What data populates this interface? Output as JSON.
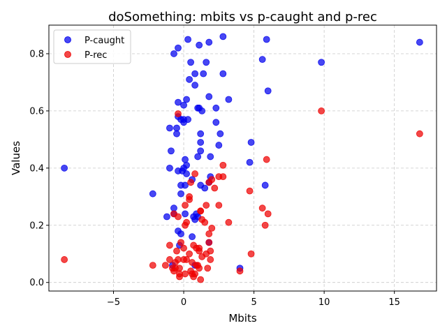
{
  "chart_data": {
    "type": "scatter",
    "title": "doSomething: mbits vs p-caught and p-rec",
    "xlabel": "Mbits",
    "ylabel": "Values",
    "xlim": [
      -9.6,
      18.0
    ],
    "ylim": [
      -0.03,
      0.9
    ],
    "xticks": [
      -5,
      0,
      5,
      10,
      15
    ],
    "yticks": [
      0.0,
      0.2,
      0.4,
      0.6,
      0.8
    ],
    "grid": true,
    "legend_position": "top-left",
    "series": [
      {
        "name": "P-caught",
        "color": "#0000ee",
        "points": [
          [
            -0.7,
            0.8
          ],
          [
            -0.4,
            0.82
          ],
          [
            0.3,
            0.85
          ],
          [
            1.1,
            0.83
          ],
          [
            1.8,
            0.84
          ],
          [
            2.8,
            0.86
          ],
          [
            5.9,
            0.85
          ],
          [
            16.8,
            0.84
          ],
          [
            0.5,
            0.77
          ],
          [
            1.6,
            0.77
          ],
          [
            5.6,
            0.78
          ],
          [
            9.8,
            0.77
          ],
          [
            0.8,
            0.73
          ],
          [
            1.4,
            0.73
          ],
          [
            2.8,
            0.73
          ],
          [
            0.4,
            0.71
          ],
          [
            0.8,
            0.69
          ],
          [
            6.0,
            0.67
          ],
          [
            1.8,
            0.65
          ],
          [
            3.2,
            0.64
          ],
          [
            0.2,
            0.64
          ],
          [
            -0.4,
            0.63
          ],
          [
            0.0,
            0.62
          ],
          [
            1.0,
            0.61
          ],
          [
            1.1,
            0.61
          ],
          [
            1.3,
            0.6
          ],
          [
            2.3,
            0.61
          ],
          [
            -0.4,
            0.58
          ],
          [
            0.0,
            0.57
          ],
          [
            0.3,
            0.57
          ],
          [
            -0.2,
            0.57
          ],
          [
            0.0,
            0.56
          ],
          [
            2.3,
            0.56
          ],
          [
            -1.0,
            0.54
          ],
          [
            -0.5,
            0.54
          ],
          [
            -0.5,
            0.52
          ],
          [
            1.2,
            0.52
          ],
          [
            2.6,
            0.52
          ],
          [
            1.2,
            0.49
          ],
          [
            4.8,
            0.49
          ],
          [
            2.5,
            0.48
          ],
          [
            -0.9,
            0.46
          ],
          [
            1.2,
            0.46
          ],
          [
            1.0,
            0.44
          ],
          [
            1.9,
            0.44
          ],
          [
            0.1,
            0.43
          ],
          [
            4.7,
            0.42
          ],
          [
            -8.5,
            0.4
          ],
          [
            -1.0,
            0.4
          ],
          [
            0.2,
            0.41
          ],
          [
            0.0,
            0.4
          ],
          [
            -0.4,
            0.39
          ],
          [
            -0.1,
            0.39
          ],
          [
            0.2,
            0.38
          ],
          [
            1.9,
            0.37
          ],
          [
            0.6,
            0.36
          ],
          [
            -0.2,
            0.34
          ],
          [
            0.1,
            0.34
          ],
          [
            1.2,
            0.34
          ],
          [
            1.5,
            0.33
          ],
          [
            1.8,
            0.35
          ],
          [
            5.8,
            0.34
          ],
          [
            -2.2,
            0.31
          ],
          [
            -0.2,
            0.31
          ],
          [
            -0.7,
            0.26
          ],
          [
            -0.7,
            0.24
          ],
          [
            0.1,
            0.24
          ],
          [
            0.9,
            0.24
          ],
          [
            0.7,
            0.23
          ],
          [
            1.0,
            0.23
          ],
          [
            0.8,
            0.22
          ],
          [
            -1.2,
            0.23
          ],
          [
            -0.4,
            0.18
          ],
          [
            -0.2,
            0.17
          ],
          [
            0.6,
            0.16
          ],
          [
            -0.3,
            0.13
          ],
          [
            1.8,
            0.14
          ],
          [
            -0.8,
            0.06
          ],
          [
            0.8,
            0.06
          ],
          [
            4.0,
            0.05
          ]
        ]
      },
      {
        "name": "P-rec",
        "color": "#ee0000",
        "points": [
          [
            -0.4,
            0.59
          ],
          [
            9.8,
            0.6
          ],
          [
            16.8,
            0.52
          ],
          [
            5.9,
            0.43
          ],
          [
            2.8,
            0.41
          ],
          [
            0.8,
            0.38
          ],
          [
            2.0,
            0.36
          ],
          [
            2.5,
            0.37
          ],
          [
            2.8,
            0.37
          ],
          [
            1.8,
            0.35
          ],
          [
            0.5,
            0.35
          ],
          [
            2.2,
            0.33
          ],
          [
            4.7,
            0.32
          ],
          [
            0.4,
            0.3
          ],
          [
            0.4,
            0.29
          ],
          [
            1.6,
            0.27
          ],
          [
            2.5,
            0.27
          ],
          [
            0.1,
            0.27
          ],
          [
            5.6,
            0.26
          ],
          [
            -0.7,
            0.24
          ],
          [
            6.0,
            0.24
          ],
          [
            -0.4,
            0.23
          ],
          [
            1.2,
            0.25
          ],
          [
            1.2,
            0.25
          ],
          [
            1.3,
            0.22
          ],
          [
            1.5,
            0.21
          ],
          [
            3.2,
            0.21
          ],
          [
            0.1,
            0.2
          ],
          [
            0.2,
            0.21
          ],
          [
            5.8,
            0.2
          ],
          [
            2.0,
            0.19
          ],
          [
            1.8,
            0.17
          ],
          [
            -0.2,
            0.14
          ],
          [
            -1.0,
            0.13
          ],
          [
            0.0,
            0.12
          ],
          [
            0.7,
            0.13
          ],
          [
            -0.5,
            0.11
          ],
          [
            0.4,
            0.1
          ],
          [
            1.1,
            0.11
          ],
          [
            1.1,
            0.12
          ],
          [
            1.9,
            0.11
          ],
          [
            1.6,
            0.1
          ],
          [
            1.3,
            0.09
          ],
          [
            4.8,
            0.1
          ],
          [
            -8.5,
            0.08
          ],
          [
            -1.0,
            0.08
          ],
          [
            -0.4,
            0.08
          ],
          [
            0.0,
            0.08
          ],
          [
            0.2,
            0.08
          ],
          [
            1.9,
            0.08
          ],
          [
            0.6,
            0.07
          ],
          [
            -0.6,
            0.07
          ],
          [
            -1.3,
            0.06
          ],
          [
            -2.2,
            0.06
          ],
          [
            0.9,
            0.06
          ],
          [
            1.0,
            0.06
          ],
          [
            -0.8,
            0.05
          ],
          [
            -0.6,
            0.05
          ],
          [
            -0.3,
            0.05
          ],
          [
            0.5,
            0.04
          ],
          [
            0.8,
            0.03
          ],
          [
            1.1,
            0.05
          ],
          [
            1.7,
            0.05
          ],
          [
            4.0,
            0.04
          ],
          [
            -0.7,
            0.04
          ],
          [
            -0.3,
            0.03
          ],
          [
            0.1,
            0.03
          ],
          [
            0.6,
            0.03
          ],
          [
            0.7,
            0.02
          ],
          [
            1.2,
            0.01
          ],
          [
            -0.3,
            0.02
          ],
          [
            1.8,
            0.14
          ],
          [
            0.9,
            0.12
          ]
        ]
      }
    ]
  }
}
